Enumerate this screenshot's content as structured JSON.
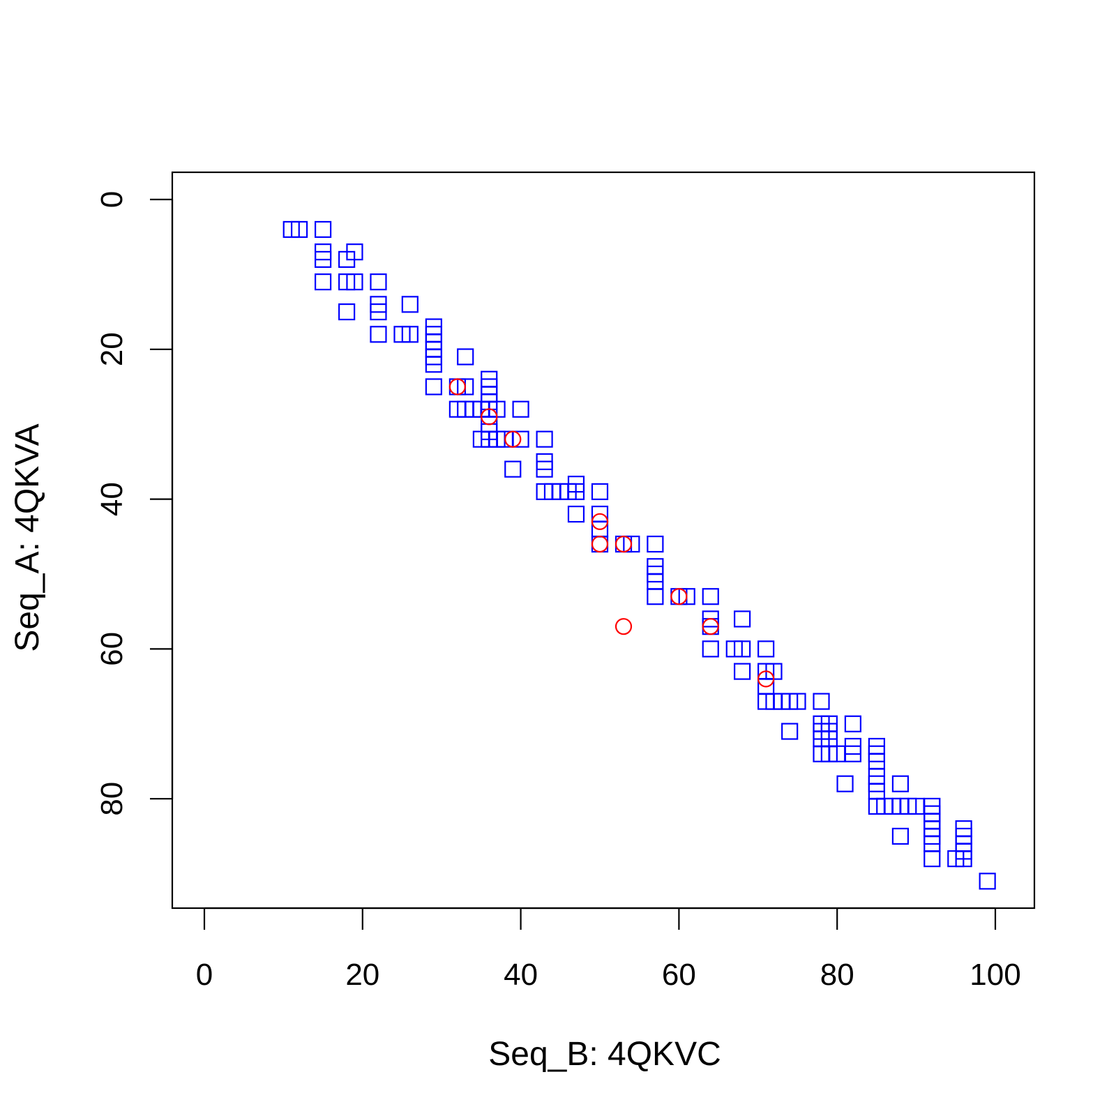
{
  "chart_data": {
    "type": "scatter",
    "title": "",
    "xlabel": "Seq_B: 4QKVC",
    "ylabel": "Seq_A: 4QKVA",
    "xlim": [
      -4,
      105
    ],
    "ylim": [
      0,
      96
    ],
    "y_reversed": true,
    "x_ticks": [
      0,
      20,
      40,
      60,
      80,
      100
    ],
    "y_ticks": [
      0,
      20,
      40,
      60,
      80
    ],
    "grid": false,
    "series": [
      {
        "marker": "square",
        "color": "#0000ff",
        "points": [
          [
            11,
            4
          ],
          [
            12,
            4
          ],
          [
            15,
            4
          ],
          [
            15,
            7
          ],
          [
            15,
            8
          ],
          [
            15,
            11
          ],
          [
            18,
            8
          ],
          [
            19,
            7
          ],
          [
            18,
            11
          ],
          [
            19,
            11
          ],
          [
            18,
            15
          ],
          [
            22,
            11
          ],
          [
            22,
            14
          ],
          [
            22,
            15
          ],
          [
            22,
            18
          ],
          [
            25,
            18
          ],
          [
            26,
            18
          ],
          [
            26,
            14
          ],
          [
            29,
            17
          ],
          [
            29,
            18
          ],
          [
            29,
            19
          ],
          [
            29,
            20
          ],
          [
            29,
            21
          ],
          [
            29,
            22
          ],
          [
            29,
            25
          ],
          [
            33,
            21
          ],
          [
            32,
            25
          ],
          [
            33,
            25
          ],
          [
            32,
            28
          ],
          [
            33,
            28
          ],
          [
            34,
            28
          ],
          [
            35,
            28
          ],
          [
            36,
            24
          ],
          [
            36,
            25
          ],
          [
            36,
            26
          ],
          [
            36,
            27
          ],
          [
            36,
            28
          ],
          [
            37,
            28
          ],
          [
            40,
            28
          ],
          [
            36,
            30
          ],
          [
            36,
            31
          ],
          [
            35,
            32
          ],
          [
            36,
            32
          ],
          [
            37,
            32
          ],
          [
            38,
            32
          ],
          [
            40,
            32
          ],
          [
            43,
            32
          ],
          [
            39,
            36
          ],
          [
            43,
            35
          ],
          [
            43,
            36
          ],
          [
            43,
            39
          ],
          [
            44,
            39
          ],
          [
            45,
            39
          ],
          [
            46,
            39
          ],
          [
            47,
            38
          ],
          [
            47,
            39
          ],
          [
            50,
            39
          ],
          [
            47,
            42
          ],
          [
            50,
            42
          ],
          [
            50,
            44
          ],
          [
            50,
            46
          ],
          [
            53,
            46
          ],
          [
            54,
            46
          ],
          [
            57,
            46
          ],
          [
            57,
            49
          ],
          [
            57,
            50
          ],
          [
            57,
            51
          ],
          [
            57,
            53
          ],
          [
            60,
            53
          ],
          [
            61,
            53
          ],
          [
            64,
            53
          ],
          [
            64,
            56
          ],
          [
            64,
            57
          ],
          [
            64,
            60
          ],
          [
            68,
            56
          ],
          [
            67,
            60
          ],
          [
            68,
            60
          ],
          [
            68,
            63
          ],
          [
            71,
            60
          ],
          [
            71,
            63
          ],
          [
            72,
            63
          ],
          [
            71,
            65
          ],
          [
            71,
            67
          ],
          [
            72,
            67
          ],
          [
            73,
            67
          ],
          [
            74,
            67
          ],
          [
            75,
            67
          ],
          [
            78,
            67
          ],
          [
            74,
            71
          ],
          [
            78,
            70
          ],
          [
            79,
            70
          ],
          [
            78,
            71
          ],
          [
            79,
            71
          ],
          [
            78,
            72
          ],
          [
            79,
            72
          ],
          [
            78,
            74
          ],
          [
            79,
            74
          ],
          [
            80,
            74
          ],
          [
            82,
            70
          ],
          [
            82,
            73
          ],
          [
            82,
            74
          ],
          [
            81,
            78
          ],
          [
            85,
            73
          ],
          [
            85,
            74
          ],
          [
            85,
            75
          ],
          [
            85,
            77
          ],
          [
            85,
            78
          ],
          [
            85,
            79
          ],
          [
            88,
            78
          ],
          [
            85,
            81
          ],
          [
            86,
            81
          ],
          [
            87,
            81
          ],
          [
            88,
            81
          ],
          [
            89,
            81
          ],
          [
            90,
            81
          ],
          [
            92,
            81
          ],
          [
            92,
            82
          ],
          [
            92,
            83
          ],
          [
            92,
            84
          ],
          [
            92,
            85
          ],
          [
            92,
            86
          ],
          [
            88,
            85
          ],
          [
            92,
            88
          ],
          [
            95,
            88
          ],
          [
            96,
            84
          ],
          [
            96,
            85
          ],
          [
            96,
            86
          ],
          [
            96,
            87
          ],
          [
            96,
            88
          ],
          [
            99,
            91
          ]
        ]
      },
      {
        "marker": "circle",
        "color": "#ff0000",
        "points": [
          [
            32,
            25
          ],
          [
            36,
            29
          ],
          [
            39,
            32
          ],
          [
            50,
            43
          ],
          [
            50,
            46
          ],
          [
            53,
            46
          ],
          [
            60,
            53
          ],
          [
            53,
            57
          ],
          [
            64,
            57
          ],
          [
            71,
            64
          ]
        ]
      }
    ]
  }
}
